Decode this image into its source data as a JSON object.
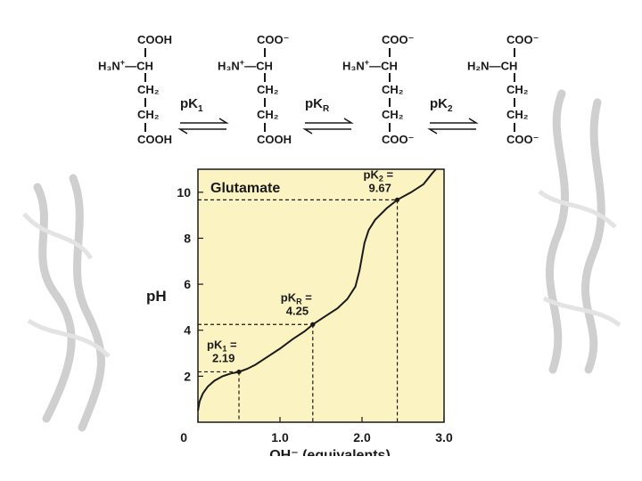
{
  "molecules": [
    {
      "top": "COOH",
      "amine_prefix": "H₃N",
      "amine_charge": "+",
      "amine_suffix": "CH",
      "ch2_a": "CH₂",
      "ch2_b": "CH₂",
      "bottom": "COOH"
    },
    {
      "top": "COO⁻",
      "amine_prefix": "H₃N",
      "amine_charge": "+",
      "amine_suffix": "CH",
      "ch2_a": "CH₂",
      "ch2_b": "CH₂",
      "bottom": "COOH"
    },
    {
      "top": "COO⁻",
      "amine_prefix": "H₃N",
      "amine_charge": "+",
      "amine_suffix": "CH",
      "ch2_a": "CH₂",
      "ch2_b": "CH₂",
      "bottom": "COO⁻"
    },
    {
      "top": "COO⁻",
      "amine_prefix": "H₂N",
      "amine_charge": "",
      "amine_suffix": "CH",
      "ch2_a": "CH₂",
      "ch2_b": "CH₂",
      "bottom": "COO⁻"
    }
  ],
  "equilibria": [
    {
      "label_main": "pK",
      "label_sub": "1"
    },
    {
      "label_main": "pK",
      "label_sub": "R"
    },
    {
      "label_main": "pK",
      "label_sub": "2"
    }
  ],
  "chart_data": {
    "type": "line",
    "title": "Glutamate",
    "xlabel": "OH⁻   (equivalents)",
    "ylabel": "pH",
    "xlim": [
      0,
      3.0
    ],
    "ylim": [
      0,
      11
    ],
    "x_ticks": [
      "0",
      "1.0",
      "2.0",
      "3.0"
    ],
    "y_ticks": [
      "2",
      "4",
      "6",
      "8",
      "10"
    ],
    "background_color": "#fcf3c2",
    "curve_points": [
      [
        0.0,
        0.5
      ],
      [
        0.02,
        0.9
      ],
      [
        0.06,
        1.25
      ],
      [
        0.12,
        1.55
      ],
      [
        0.2,
        1.8
      ],
      [
        0.3,
        2.0
      ],
      [
        0.4,
        2.12
      ],
      [
        0.5,
        2.19
      ],
      [
        0.6,
        2.32
      ],
      [
        0.7,
        2.5
      ],
      [
        0.85,
        2.85
      ],
      [
        1.0,
        3.2
      ],
      [
        1.15,
        3.6
      ],
      [
        1.3,
        3.95
      ],
      [
        1.4,
        4.25
      ],
      [
        1.55,
        4.6
      ],
      [
        1.7,
        4.95
      ],
      [
        1.82,
        5.35
      ],
      [
        1.92,
        5.9
      ],
      [
        1.97,
        6.6
      ],
      [
        2.0,
        7.2
      ],
      [
        2.03,
        7.8
      ],
      [
        2.08,
        8.35
      ],
      [
        2.16,
        8.8
      ],
      [
        2.3,
        9.3
      ],
      [
        2.43,
        9.67
      ],
      [
        2.6,
        10.0
      ],
      [
        2.75,
        10.35
      ],
      [
        2.85,
        10.8
      ],
      [
        2.9,
        11.0
      ]
    ],
    "annotations": [
      {
        "label_line1": "pK",
        "label_sub": "1",
        "label_line2": "2.19",
        "x": 0.5,
        "y": 2.19
      },
      {
        "label_line1": "pK",
        "label_sub": "R",
        "label_line2": "4.25",
        "x": 1.4,
        "y": 4.25
      },
      {
        "label_line1": "pK",
        "label_sub": "2",
        "label_line2": "9.67",
        "x": 2.43,
        "y": 9.67
      }
    ]
  }
}
